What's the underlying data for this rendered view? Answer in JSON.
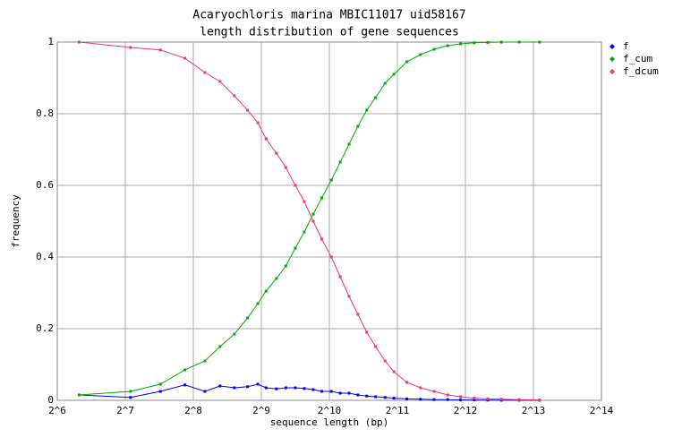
{
  "chart_data": {
    "type": "line",
    "title": "Acaryochloris marina MBIC11017 uid58167",
    "subtitle": "length distribution of gene sequences",
    "x_label": "sequence length (bp)",
    "y_label": "frequency",
    "xscale": "log2",
    "xlim": [
      64,
      16384
    ],
    "xticks": [
      {
        "value": 64,
        "label": "2^6"
      },
      {
        "value": 128,
        "label": "2^7"
      },
      {
        "value": 256,
        "label": "2^8"
      },
      {
        "value": 512,
        "label": "2^9"
      },
      {
        "value": 1024,
        "label": "2^10"
      },
      {
        "value": 2048,
        "label": "2^11"
      },
      {
        "value": 4096,
        "label": "2^12"
      },
      {
        "value": 8192,
        "label": "2^13"
      },
      {
        "value": 16384,
        "label": "2^14"
      }
    ],
    "ylim": [
      0,
      1
    ],
    "yticks": [
      0,
      0.2,
      0.4,
      0.6,
      0.8,
      1
    ],
    "grid": true,
    "legend": "right",
    "x": [
      80,
      135,
      183,
      235,
      288,
      336,
      389,
      445,
      494,
      537,
      597,
      657,
      724,
      793,
      869,
      948,
      1045,
      1144,
      1252,
      1370,
      1499,
      1640,
      1806,
      1977,
      2256,
      2591,
      2977,
      3420,
      3900,
      4480,
      5146,
      5911,
      7086,
      8713
    ],
    "series": [
      {
        "name": "f",
        "color": "#0000ff",
        "values": [
          0.015,
          0.008,
          0.025,
          0.043,
          0.025,
          0.04,
          0.035,
          0.038,
          0.045,
          0.035,
          0.032,
          0.035,
          0.035,
          0.033,
          0.03,
          0.025,
          0.025,
          0.02,
          0.02,
          0.015,
          0.012,
          0.01,
          0.008,
          0.006,
          0.004,
          0.003,
          0.002,
          0.002,
          0.001,
          0.001,
          0.0005,
          0.0003,
          0.0002,
          0.0001
        ]
      },
      {
        "name": "f_cum",
        "color": "#00aa00",
        "values": [
          0.015,
          0.025,
          0.045,
          0.085,
          0.11,
          0.15,
          0.185,
          0.23,
          0.27,
          0.305,
          0.34,
          0.375,
          0.425,
          0.47,
          0.52,
          0.565,
          0.615,
          0.665,
          0.715,
          0.765,
          0.81,
          0.845,
          0.885,
          0.91,
          0.945,
          0.965,
          0.98,
          0.99,
          0.995,
          0.998,
          0.999,
          1,
          1,
          1
        ]
      },
      {
        "name": "f_dcum",
        "color": "#ee3377",
        "values": [
          1,
          0.985,
          0.978,
          0.955,
          0.915,
          0.89,
          0.85,
          0.81,
          0.775,
          0.73,
          0.69,
          0.65,
          0.6,
          0.555,
          0.5,
          0.45,
          0.4,
          0.345,
          0.29,
          0.24,
          0.19,
          0.15,
          0.11,
          0.08,
          0.05,
          0.035,
          0.025,
          0.015,
          0.01,
          0.006,
          0.004,
          0.003,
          0.002,
          0.001
        ]
      }
    ]
  }
}
